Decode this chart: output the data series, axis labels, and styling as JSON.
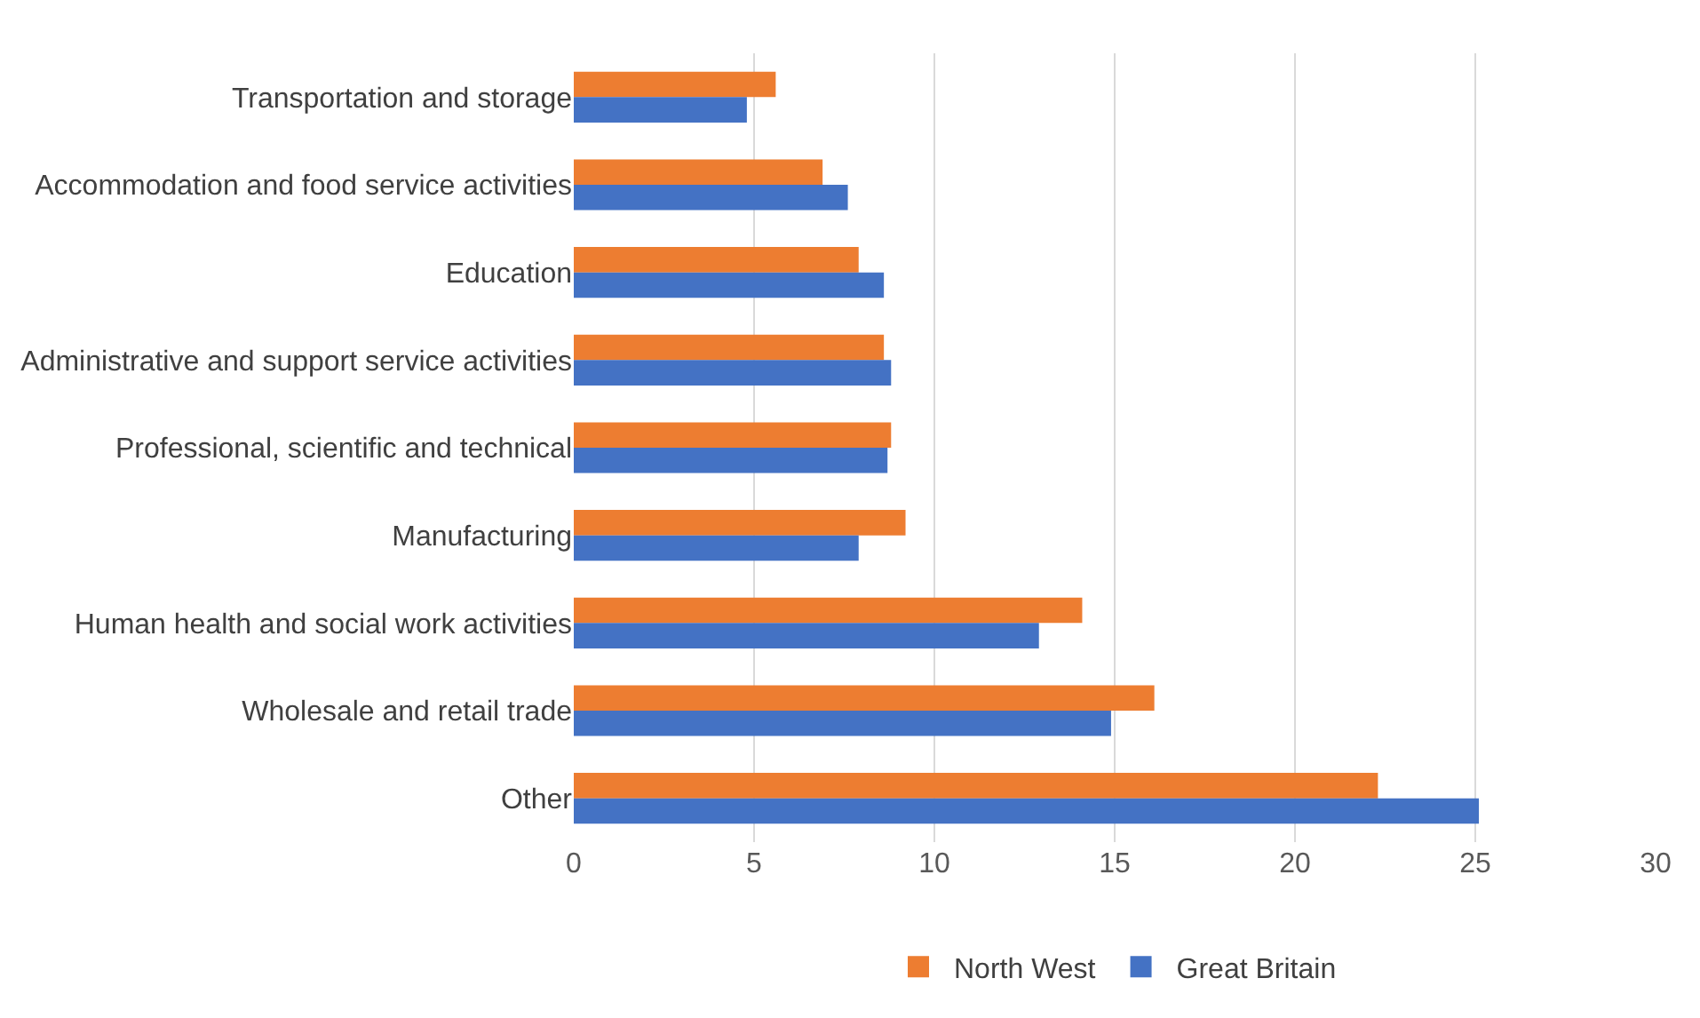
{
  "chart_data": {
    "type": "bar",
    "orientation": "horizontal",
    "categories": [
      "Transportation and storage",
      "Accommodation and food service activities",
      "Education",
      "Administrative and support service activities",
      "Professional, scientific and technical",
      "Manufacturing",
      "Human health and social work activities",
      "Wholesale and retail trade",
      "Other"
    ],
    "series": [
      {
        "name": "North West",
        "color": "#ed7d31",
        "values": [
          5.6,
          6.9,
          7.9,
          8.6,
          8.8,
          9.2,
          14.1,
          16.1,
          22.3
        ]
      },
      {
        "name": "Great Britain",
        "color": "#4472c4",
        "values": [
          4.8,
          7.6,
          8.6,
          8.8,
          8.7,
          7.9,
          12.9,
          14.9,
          25.1
        ]
      }
    ],
    "xlim": [
      0,
      30
    ],
    "xticks": [
      0,
      5,
      10,
      15,
      20,
      25,
      30
    ],
    "grid": "x",
    "legend": "bottom"
  }
}
